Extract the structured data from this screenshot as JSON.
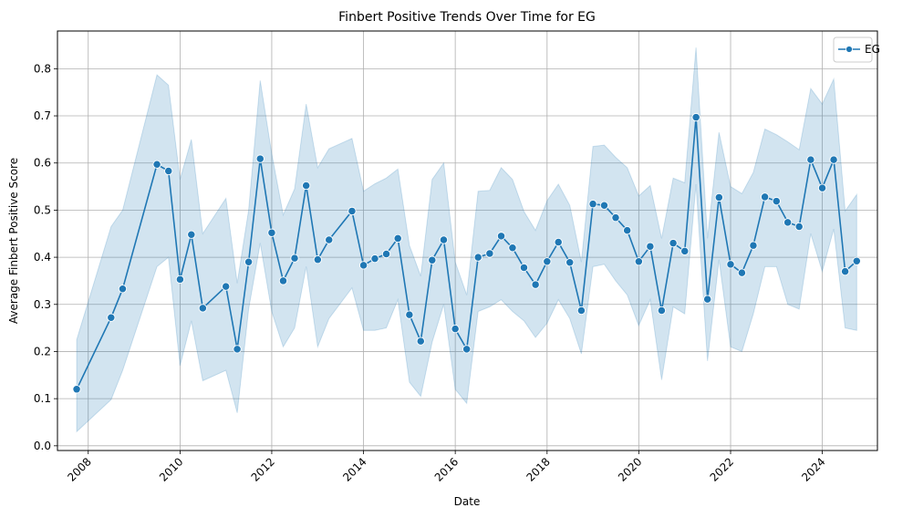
{
  "chart_data": {
    "type": "line",
    "title": "Finbert Positive Trends Over Time for EG",
    "xlabel": "Date",
    "ylabel": "Average Finbert Positive Score",
    "xlim": [
      "2007-05-01",
      "2025-03-15"
    ],
    "ylim": [
      -0.01,
      0.88
    ],
    "xticks": [
      "2008",
      "2010",
      "2012",
      "2014",
      "2016",
      "2018",
      "2020",
      "2022",
      "2024"
    ],
    "yticks": [
      "0.0",
      "0.1",
      "0.2",
      "0.3",
      "0.4",
      "0.5",
      "0.6",
      "0.7",
      "0.8"
    ],
    "grid": true,
    "legend_position": "top-right",
    "colors": {
      "line": "#1f77b4",
      "band": "#1f77b4",
      "grid": "#b0b0b0"
    },
    "series": [
      {
        "name": "EG",
        "x": [
          "2007-10-01",
          "2008-07-01",
          "2008-10-01",
          "2009-07-01",
          "2009-10-01",
          "2010-01-01",
          "2010-04-01",
          "2010-07-01",
          "2011-01-01",
          "2011-04-01",
          "2011-07-01",
          "2011-10-01",
          "2012-01-01",
          "2012-04-01",
          "2012-07-01",
          "2012-10-01",
          "2013-01-01",
          "2013-04-01",
          "2013-10-01",
          "2014-01-01",
          "2014-04-01",
          "2014-07-01",
          "2014-10-01",
          "2015-01-01",
          "2015-04-01",
          "2015-07-01",
          "2015-10-01",
          "2016-01-01",
          "2016-04-01",
          "2016-07-01",
          "2016-10-01",
          "2017-01-01",
          "2017-04-01",
          "2017-07-01",
          "2017-10-01",
          "2018-01-01",
          "2018-04-01",
          "2018-07-01",
          "2018-10-01",
          "2019-01-01",
          "2019-04-01",
          "2019-07-01",
          "2019-10-01",
          "2020-01-01",
          "2020-04-01",
          "2020-07-01",
          "2020-10-01",
          "2021-01-01",
          "2021-04-01",
          "2021-07-01",
          "2021-10-01",
          "2022-01-01",
          "2022-04-01",
          "2022-07-01",
          "2022-10-01",
          "2023-01-01",
          "2023-04-01",
          "2023-07-01",
          "2023-10-01",
          "2024-01-01",
          "2024-04-01",
          "2024-07-01",
          "2024-10-01"
        ],
        "values": [
          0.12,
          0.272,
          0.333,
          0.597,
          0.583,
          0.353,
          0.448,
          0.292,
          0.338,
          0.205,
          0.39,
          0.609,
          0.452,
          0.35,
          0.398,
          0.552,
          0.395,
          0.437,
          0.498,
          0.383,
          0.397,
          0.407,
          0.44,
          0.278,
          0.222,
          0.394,
          0.437,
          0.248,
          0.205,
          0.4,
          0.408,
          0.445,
          0.42,
          0.378,
          0.342,
          0.391,
          0.432,
          0.389,
          0.287,
          0.513,
          0.51,
          0.484,
          0.457,
          0.391,
          0.423,
          0.287,
          0.43,
          0.413,
          0.697,
          0.311,
          0.527,
          0.385,
          0.367,
          0.425,
          0.528,
          0.519,
          0.474,
          0.465,
          0.607,
          0.547,
          0.607,
          0.37,
          0.392
        ],
        "ci_lower": [
          0.03,
          0.098,
          0.16,
          0.38,
          0.4,
          0.17,
          0.265,
          0.138,
          0.16,
          0.07,
          0.29,
          0.43,
          0.285,
          0.21,
          0.25,
          0.38,
          0.21,
          0.27,
          0.335,
          0.245,
          0.245,
          0.25,
          0.31,
          0.135,
          0.105,
          0.22,
          0.3,
          0.12,
          0.09,
          0.285,
          0.295,
          0.31,
          0.285,
          0.265,
          0.23,
          0.26,
          0.31,
          0.27,
          0.195,
          0.38,
          0.385,
          0.35,
          0.32,
          0.255,
          0.31,
          0.14,
          0.295,
          0.28,
          0.555,
          0.18,
          0.395,
          0.21,
          0.2,
          0.28,
          0.38,
          0.38,
          0.3,
          0.29,
          0.45,
          0.37,
          0.46,
          0.25,
          0.245
        ],
        "ci_upper": [
          0.225,
          0.465,
          0.5,
          0.787,
          0.765,
          0.565,
          0.65,
          0.45,
          0.525,
          0.345,
          0.5,
          0.775,
          0.62,
          0.49,
          0.545,
          0.725,
          0.59,
          0.63,
          0.652,
          0.54,
          0.556,
          0.568,
          0.587,
          0.425,
          0.36,
          0.565,
          0.6,
          0.39,
          0.32,
          0.54,
          0.542,
          0.59,
          0.565,
          0.497,
          0.457,
          0.52,
          0.555,
          0.51,
          0.39,
          0.635,
          0.638,
          0.612,
          0.59,
          0.53,
          0.552,
          0.44,
          0.568,
          0.558,
          0.845,
          0.44,
          0.665,
          0.55,
          0.535,
          0.58,
          0.672,
          0.66,
          0.645,
          0.628,
          0.758,
          0.725,
          0.778,
          0.498,
          0.533
        ]
      }
    ]
  }
}
